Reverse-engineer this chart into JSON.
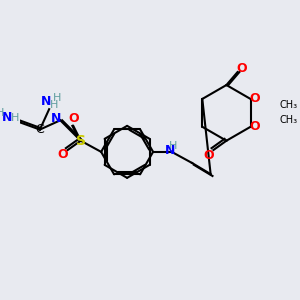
{
  "bg_color": "#e8eaf0",
  "atom_colors": {
    "C": "#000000",
    "N": "#0000ff",
    "O": "#ff0000",
    "S": "#cccc00",
    "H": "#5f9ea0"
  },
  "bond_color": "#000000",
  "bond_width": 1.5,
  "font_size": 9
}
